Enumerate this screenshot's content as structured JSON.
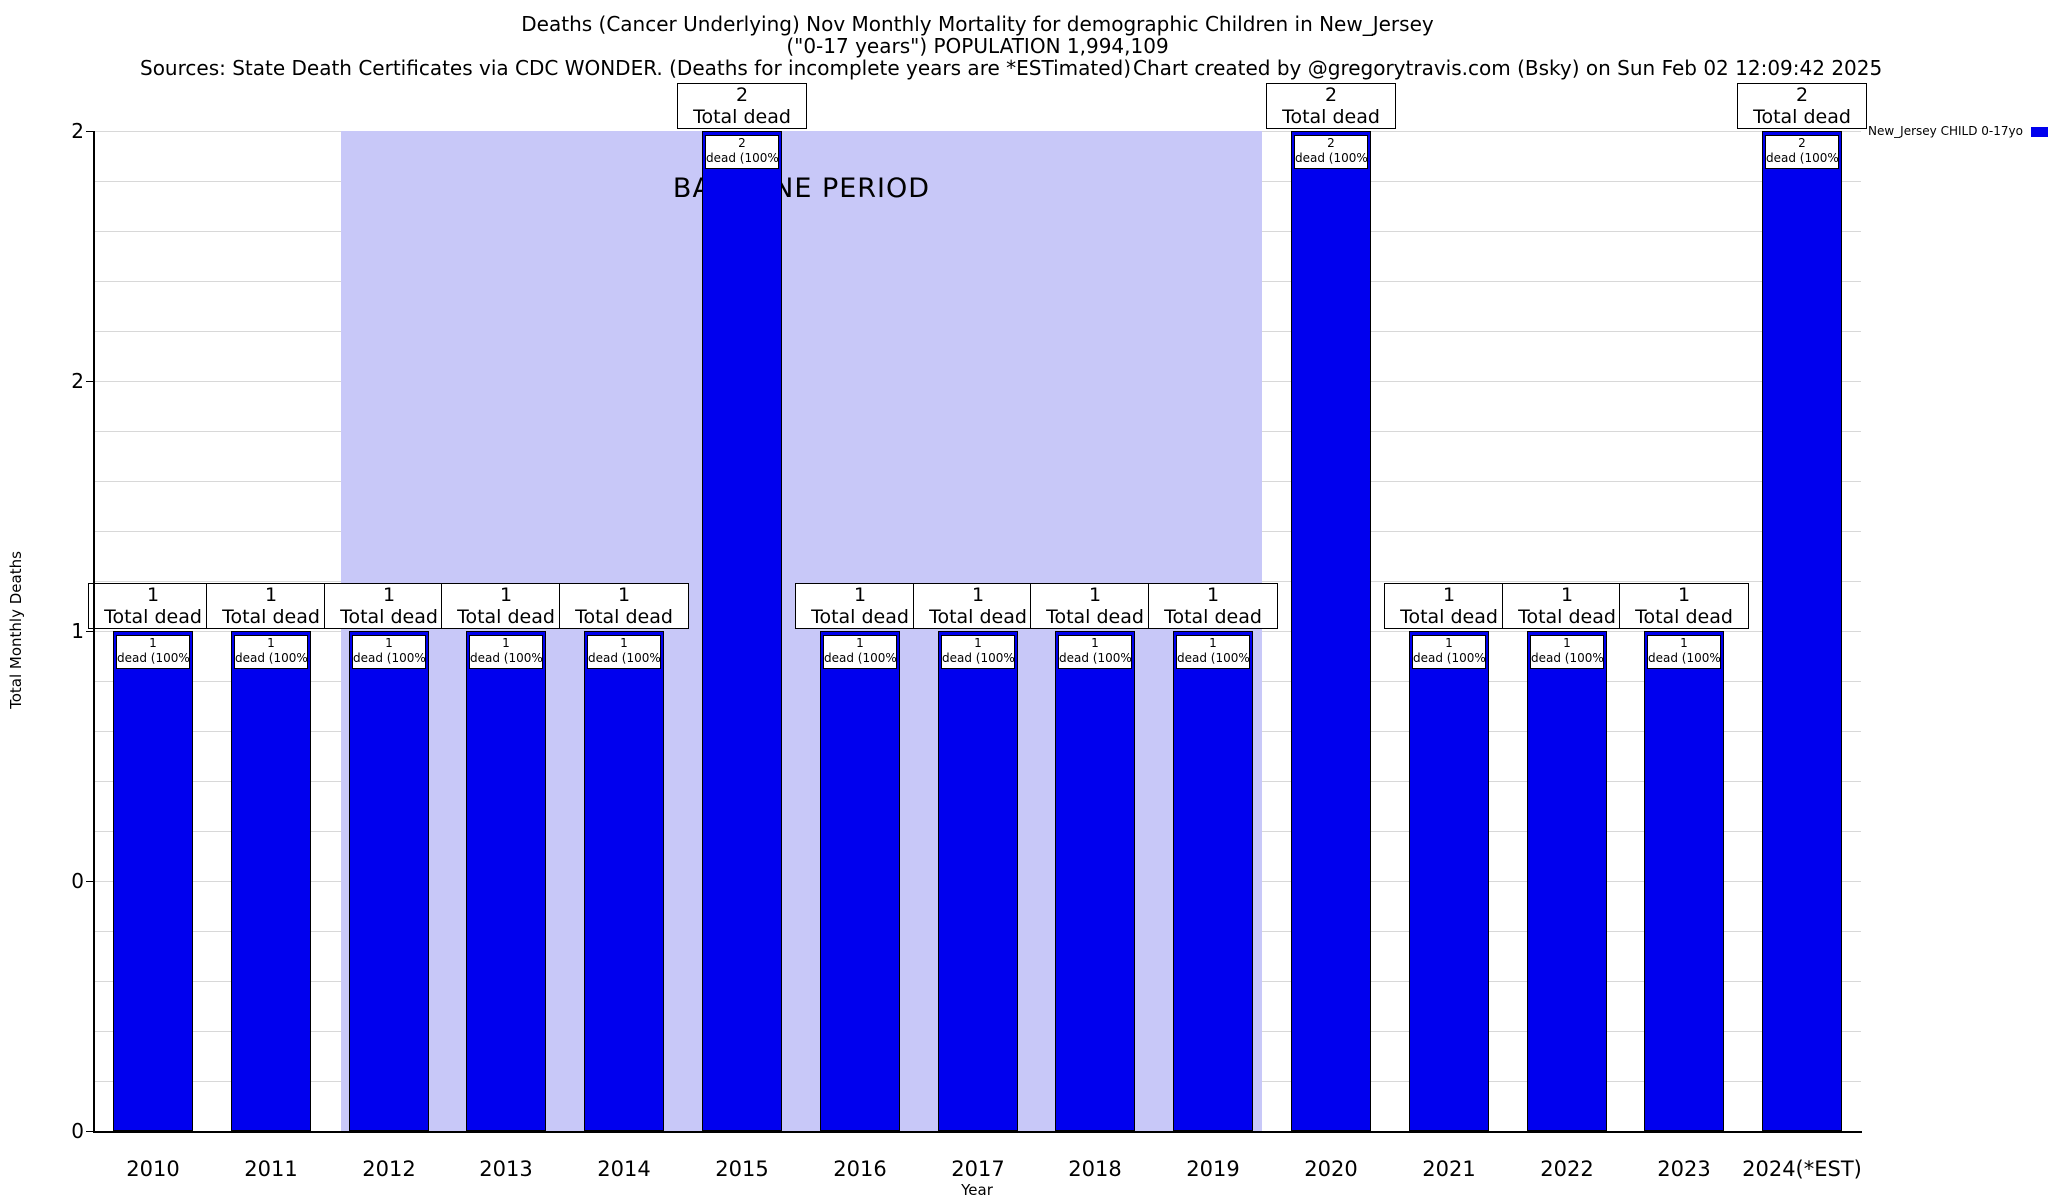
{
  "header": {
    "title_line1": "Deaths (Cancer Underlying) Nov Monthly Mortality for demographic Children in New_Jersey",
    "title_line2": "(\"0-17 years\") POPULATION 1,994,109",
    "sources": "Sources: State Death Certificates via CDC WONDER. (Deaths for incomplete years are *ESTimated)",
    "credit": "Chart created by @gregorytravis.com (Bsky) on Sun Feb 02 12:09:42 2025"
  },
  "legend": {
    "label": "New_Jersey CHILD 0-17yo",
    "color": "#0000ee"
  },
  "chart_data": {
    "type": "bar",
    "title": "Deaths (Cancer Underlying) Nov Monthly Mortality for demographic Children in New_Jersey",
    "subtitle": "(\"0-17 years\") POPULATION 1,994,109",
    "categories": [
      "2010",
      "2011",
      "2012",
      "2013",
      "2014",
      "2015",
      "2016",
      "2017",
      "2018",
      "2019",
      "2020",
      "2021",
      "2022",
      "2023",
      "2024(*EST)"
    ],
    "values": [
      1,
      1,
      1,
      1,
      1,
      2,
      1,
      1,
      1,
      1,
      2,
      1,
      1,
      1,
      2
    ],
    "xlabel": "Year",
    "ylabel": "Total Monthly Deaths",
    "ylim": [
      0,
      2
    ],
    "yticks": [
      {
        "value": 0,
        "label": "0"
      },
      {
        "value": 0.5,
        "label": "0"
      },
      {
        "value": 1,
        "label": "1"
      },
      {
        "value": 1.5,
        "label": "2"
      },
      {
        "value": 2,
        "label": "2"
      }
    ],
    "grid": "horizontal gridlines every 0.1 units",
    "bar_color": "#0000ee",
    "gridline_color": "#d8d8d8",
    "bar_top_label_text": "Total dead",
    "bar_inner_label_text": "dead (100%)",
    "baseline_period": {
      "label": "BASELINE PERIOD",
      "start_category": "2012",
      "end_category": "2019",
      "start_index": 2,
      "end_index": 9,
      "color": "#c8c8f8"
    },
    "legend_entry": "New_Jersey CHILD 0-17yo",
    "legend_position": "top-right"
  }
}
